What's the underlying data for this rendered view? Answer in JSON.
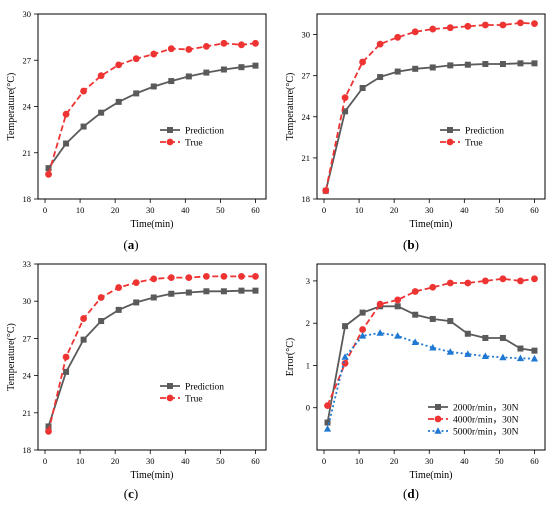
{
  "colors": {
    "prediction": "#5a5a5a",
    "true": "#ee3333",
    "blue": "#1f78d1",
    "axis": "#000000"
  },
  "chart_data": [
    {
      "type": "line",
      "panel_label": "(a)",
      "xlabel": "Time(min)",
      "ylabel": "Temperature(°C)",
      "xlim": [
        -2,
        63
      ],
      "ylim": [
        18,
        30
      ],
      "xticks": [
        0,
        10,
        20,
        30,
        40,
        50,
        60
      ],
      "yticks": [
        18,
        21,
        24,
        27,
        30
      ],
      "legend_position": "right-middle",
      "series": [
        {
          "name": "Prediction",
          "color_key": "prediction",
          "marker": "square",
          "dash": "solid",
          "x": [
            1,
            6,
            11,
            16,
            21,
            26,
            31,
            36,
            41,
            46,
            51,
            56,
            60
          ],
          "y": [
            20.0,
            21.6,
            22.7,
            23.6,
            24.3,
            24.85,
            25.3,
            25.65,
            25.95,
            26.2,
            26.4,
            26.55,
            26.65
          ]
        },
        {
          "name": "True",
          "color_key": "true",
          "marker": "circle",
          "dash": "dashed",
          "x": [
            1,
            6,
            11,
            16,
            21,
            26,
            31,
            36,
            41,
            46,
            51,
            56,
            60
          ],
          "y": [
            19.6,
            23.5,
            25.0,
            26.0,
            26.7,
            27.1,
            27.4,
            27.75,
            27.7,
            27.9,
            28.1,
            28.0,
            28.1
          ]
        }
      ]
    },
    {
      "type": "line",
      "panel_label": "(b)",
      "xlabel": "Time(min)",
      "ylabel": "Temperature(°C)",
      "xlim": [
        -2,
        63
      ],
      "ylim": [
        18,
        31.5
      ],
      "xticks": [
        0,
        10,
        20,
        30,
        40,
        50,
        60
      ],
      "yticks": [
        18,
        21,
        24,
        27,
        30
      ],
      "legend_position": "right-middle",
      "series": [
        {
          "name": "Prediction",
          "color_key": "prediction",
          "marker": "square",
          "dash": "solid",
          "x": [
            0.5,
            6,
            11,
            16,
            21,
            26,
            31,
            36,
            41,
            46,
            51,
            56,
            60
          ],
          "y": [
            18.6,
            24.4,
            26.1,
            26.9,
            27.3,
            27.5,
            27.6,
            27.75,
            27.8,
            27.85,
            27.85,
            27.9,
            27.9
          ]
        },
        {
          "name": "True",
          "color_key": "true",
          "marker": "circle",
          "dash": "dashed",
          "x": [
            0.5,
            6,
            11,
            16,
            21,
            26,
            31,
            36,
            41,
            46,
            51,
            56,
            60
          ],
          "y": [
            18.6,
            25.4,
            28.0,
            29.3,
            29.8,
            30.2,
            30.4,
            30.5,
            30.6,
            30.7,
            30.7,
            30.85,
            30.8
          ]
        }
      ]
    },
    {
      "type": "line",
      "panel_label": "(c)",
      "xlabel": "Time(min)",
      "ylabel": "Temperature(°C)",
      "xlim": [
        -2,
        63
      ],
      "ylim": [
        18,
        33
      ],
      "xticks": [
        0,
        10,
        20,
        30,
        40,
        50,
        60
      ],
      "yticks": [
        18,
        21,
        24,
        27,
        30,
        33
      ],
      "legend_position": "right-middle",
      "series": [
        {
          "name": "Prediction",
          "color_key": "prediction",
          "marker": "square",
          "dash": "solid",
          "x": [
            1,
            6,
            11,
            16,
            21,
            26,
            31,
            36,
            41,
            46,
            51,
            56,
            60
          ],
          "y": [
            19.9,
            24.3,
            26.9,
            28.4,
            29.3,
            29.9,
            30.3,
            30.6,
            30.7,
            30.8,
            30.8,
            30.85,
            30.85
          ]
        },
        {
          "name": "True",
          "color_key": "true",
          "marker": "circle",
          "dash": "dashed",
          "x": [
            1,
            6,
            11,
            16,
            21,
            26,
            31,
            36,
            41,
            46,
            51,
            56,
            60
          ],
          "y": [
            19.5,
            25.5,
            28.6,
            30.3,
            31.1,
            31.5,
            31.8,
            31.9,
            31.9,
            32.0,
            32.0,
            32.0,
            32.0
          ]
        }
      ]
    },
    {
      "type": "line",
      "panel_label": "(d)",
      "xlabel": "Time(min)",
      "ylabel": "Error(°C)",
      "xlim": [
        -2,
        63
      ],
      "ylim": [
        -1,
        3.4
      ],
      "xticks": [
        0,
        10,
        20,
        30,
        40,
        50,
        60
      ],
      "yticks": [
        0,
        1,
        2,
        3
      ],
      "legend_position": "bottom-right",
      "series": [
        {
          "name": "2000r/min，30N",
          "color_key": "prediction",
          "marker": "square",
          "dash": "solid",
          "x": [
            1,
            6,
            11,
            16,
            21,
            26,
            31,
            36,
            41,
            46,
            51,
            56,
            60
          ],
          "y": [
            -0.35,
            1.93,
            2.25,
            2.4,
            2.4,
            2.2,
            2.1,
            2.05,
            1.75,
            1.65,
            1.65,
            1.4,
            1.35
          ]
        },
        {
          "name": "4000r/min，30N",
          "color_key": "true",
          "marker": "circle",
          "dash": "dashed",
          "x": [
            1,
            6,
            11,
            16,
            21,
            26,
            31,
            36,
            41,
            46,
            51,
            56,
            60
          ],
          "y": [
            0.05,
            1.05,
            1.85,
            2.45,
            2.55,
            2.75,
            2.85,
            2.95,
            2.95,
            3.0,
            3.05,
            3.0,
            3.05
          ]
        },
        {
          "name": "5000r/min，30N",
          "color_key": "blue",
          "marker": "triangle",
          "dash": "dashdot",
          "x": [
            1,
            6,
            11,
            16,
            21,
            26,
            31,
            36,
            41,
            46,
            51,
            56,
            60
          ],
          "y": [
            -0.5,
            1.2,
            1.7,
            1.77,
            1.7,
            1.55,
            1.42,
            1.32,
            1.27,
            1.22,
            1.19,
            1.17,
            1.16
          ]
        }
      ]
    }
  ]
}
